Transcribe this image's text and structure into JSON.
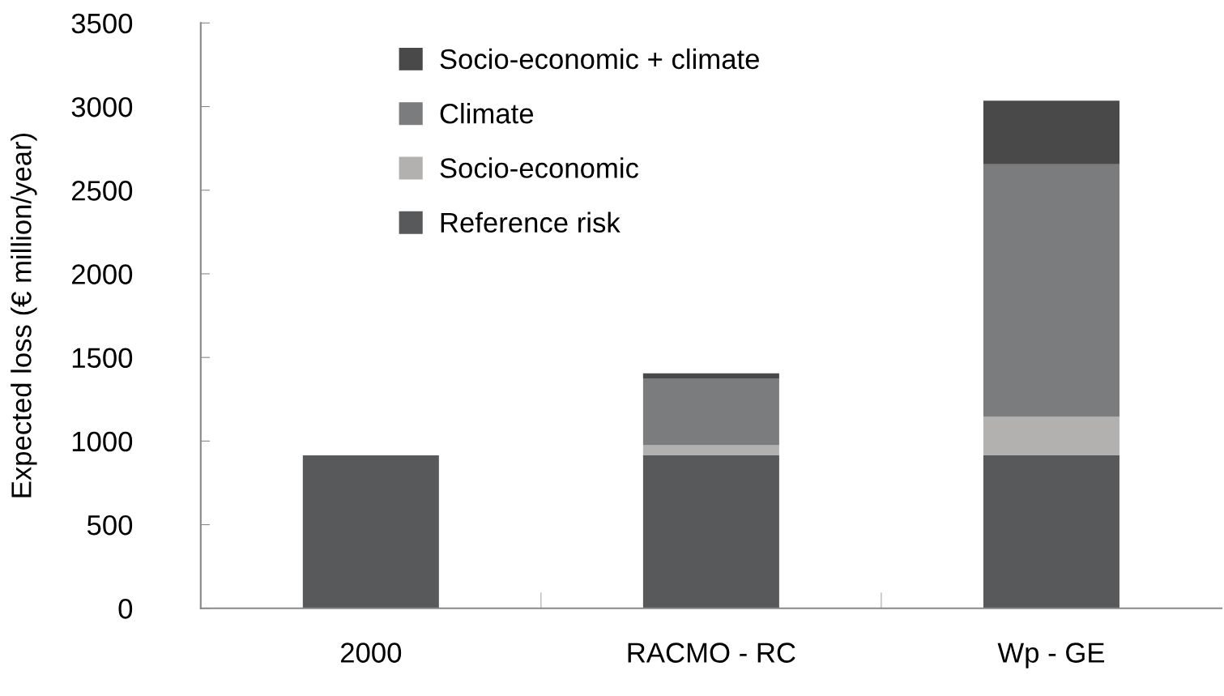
{
  "chart_data": {
    "type": "bar",
    "stacked": true,
    "ylabel": "Expected loss (€ million/year)",
    "categories": [
      "2000",
      "RACMO - RC",
      "Wp - GE"
    ],
    "series": [
      {
        "name": "Reference risk",
        "color": "#58595b",
        "values": [
          915,
          915,
          915
        ]
      },
      {
        "name": "Socio-economic",
        "color": "#b2b1b0",
        "values": [
          0,
          60,
          230
        ]
      },
      {
        "name": "Climate",
        "color": "#7b7c7e",
        "values": [
          0,
          400,
          1510
        ]
      },
      {
        "name": "Socio-economic + climate",
        "color": "#494949",
        "values": [
          0,
          30,
          380
        ]
      }
    ],
    "ylim": [
      0,
      3500
    ],
    "yticks": [
      0,
      500,
      1000,
      1500,
      2000,
      2500,
      3000,
      3500
    ],
    "grid": false,
    "legend": "top"
  }
}
